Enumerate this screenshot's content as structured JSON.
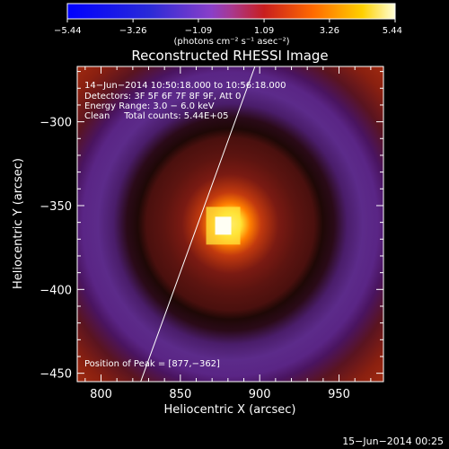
{
  "chart_data": {
    "type": "heatmap",
    "title": "Reconstructed RHESSI Image",
    "xlabel": "Heliocentric X (arcsec)",
    "ylabel": "Heliocentric Y (arcsec)",
    "xlim": [
      785,
      978
    ],
    "ylim": [
      -455,
      -267
    ],
    "x_ticks": [
      800,
      850,
      900,
      950
    ],
    "x_tick_labels": [
      "800",
      "850",
      "900",
      "950"
    ],
    "y_ticks": [
      -300,
      -350,
      -400,
      -450
    ],
    "y_tick_labels": [
      "−300",
      "−350",
      "−400",
      "−450"
    ],
    "colorbar": {
      "min": -5.44,
      "max": 5.44,
      "ticks": [
        -5.44,
        -3.26,
        -1.09,
        1.09,
        3.26,
        5.44
      ],
      "tick_labels": [
        "−5.44",
        "−3.26",
        "−1.09",
        "1.09",
        "3.26",
        "5.44"
      ],
      "unit_label": "(photons cm⁻² s⁻¹ asec⁻²)"
    },
    "annotations": {
      "time_range": "14−Jun−2014 10:50:18.000 to 10:56:18.000",
      "detectors": "Detectors: 3F 5F 6F 7F 8F 9F, Att 0",
      "energy_range": "Energy Range: 3.0 − 6.0 keV",
      "method_counts": "Clean     Total counts: 5.44E+05",
      "peak": "Position of Peak = [877,−362]"
    },
    "peak_position": [
      877,
      -362
    ],
    "peak_value": 5.44,
    "limb_line": [
      [
        825,
        -455
      ],
      [
        897,
        -267
      ]
    ],
    "timestamp": "15−Jun−2014 00:25"
  }
}
